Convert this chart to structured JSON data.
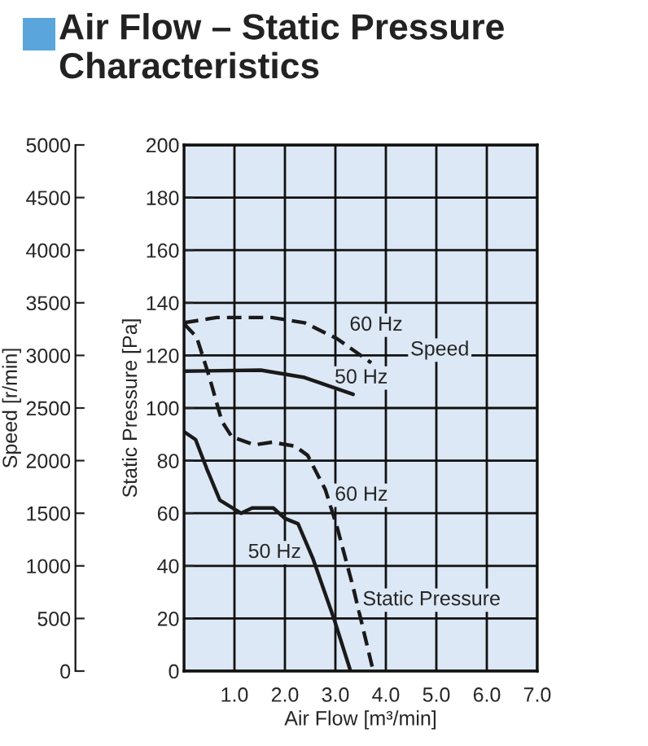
{
  "chart_data": {
    "type": "line",
    "title": "Air Flow – Static Pressure Characteristics",
    "xlabel": "Air Flow [m³/min]",
    "ylabel": "Static Pressure [Pa]",
    "y2label": "Speed [r/min]",
    "xlim": [
      0,
      7
    ],
    "xticks": [
      {
        "value": 0,
        "label": null
      },
      {
        "value": 1,
        "label": "1.0"
      },
      {
        "value": 2,
        "label": "2.0"
      },
      {
        "value": 3,
        "label": "3.0"
      },
      {
        "value": 4,
        "label": "4.0"
      },
      {
        "value": 5,
        "label": "5.0"
      },
      {
        "value": 6,
        "label": "6.0"
      },
      {
        "value": 7,
        "label": "7.0"
      }
    ],
    "ylim": [
      0,
      200
    ],
    "yticks": [
      0,
      20,
      40,
      60,
      80,
      100,
      120,
      140,
      160,
      180,
      200
    ],
    "y2lim": [
      0,
      5000
    ],
    "y2ticks": [
      0,
      500,
      1000,
      1500,
      2000,
      2500,
      3000,
      3500,
      4000,
      4500,
      5000
    ],
    "grid": true,
    "legend": false,
    "series": [
      {
        "color": "#1a1a1a",
        "line_style": "dashed",
        "axis": "y2",
        "x": [
          0,
          0.65,
          1.74,
          2.39,
          3.03,
          3.71
        ],
        "values": [
          3310,
          3360,
          3360,
          3310,
          3160,
          2930
        ]
      },
      {
        "color": "#1a1a1a",
        "line_style": "solid",
        "axis": "y2",
        "x": [
          0,
          1.52,
          2.39,
          3.35
        ],
        "values": [
          2850,
          2860,
          2790,
          2630
        ]
      },
      {
        "color": "#1a1a1a",
        "line_style": "dashed",
        "x": [
          0,
          0.25,
          0.5,
          0.75,
          0.95,
          1.4,
          1.75,
          2.2,
          2.45,
          2.8,
          3.03,
          3.35,
          3.75
        ],
        "values": [
          132,
          127,
          112,
          95,
          89,
          86,
          87,
          85.5,
          82,
          69,
          55,
          32,
          0
        ]
      },
      {
        "color": "#1a1a1a",
        "line_style": "solid",
        "x": [
          0,
          0.23,
          0.45,
          0.71,
          1.13,
          1.35,
          1.77,
          2.0,
          2.26,
          2.55,
          2.97,
          3.3
        ],
        "values": [
          91,
          88,
          77,
          65,
          60,
          62,
          62,
          58,
          56,
          43,
          20,
          0
        ]
      }
    ],
    "annotations": [
      {
        "text": "60 Hz",
        "x": 3.71,
        "y": 117.2
      },
      {
        "text": "50 Hz",
        "x": 3.35,
        "y": 105.2
      },
      "Speed",
      {
        "text": "60 Hz",
        "x": 2.95,
        "y": 60
      },
      {
        "text": "50 Hz",
        "x": 2.505,
        "y": 45
      },
      {
        "text": "Static Pressure",
        "x": 3.41,
        "y": 27
      }
    ]
  }
}
